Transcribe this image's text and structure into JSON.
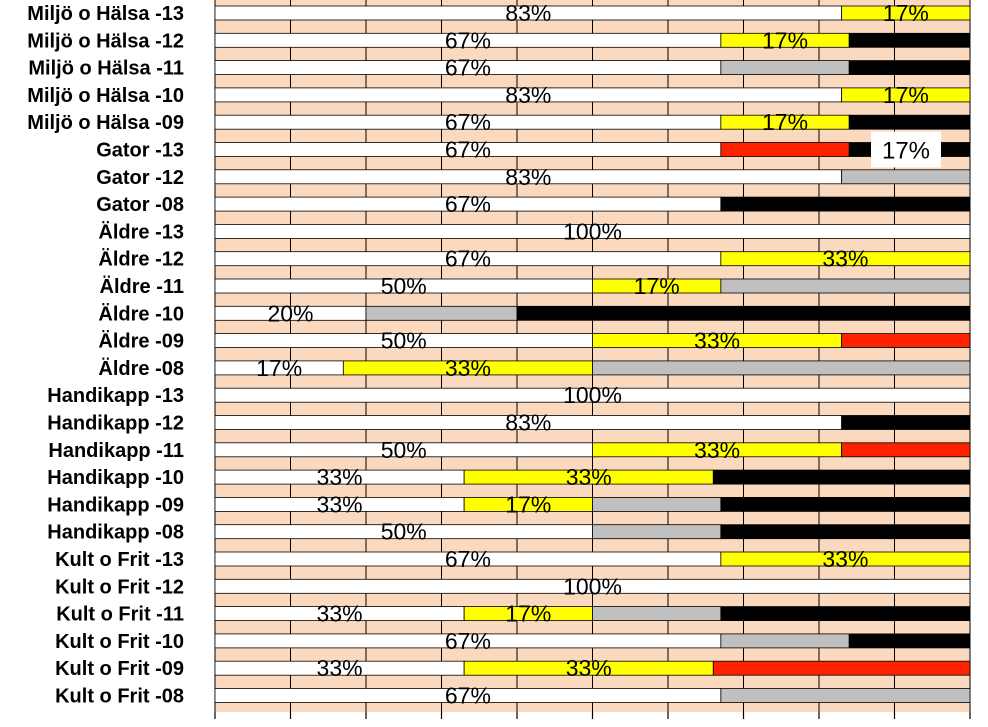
{
  "chart_data": {
    "type": "bar",
    "orientation": "horizontal",
    "stacked": true,
    "percent": true,
    "xlim": [
      0,
      100
    ],
    "grid": true,
    "legend": "none",
    "colors": {
      "background": "#fbd9be",
      "grid": "#000000",
      "white": "#ffffff",
      "yellow": "#ffff00",
      "gray": "#c0c0c0",
      "red": "#ff2200",
      "black": "#000000"
    },
    "categories": [
      "Miljö o Hälsa -13",
      "Miljö o Hälsa -12",
      "Miljö o Hälsa -11",
      "Miljö o Hälsa -10",
      "Miljö o Hälsa -09",
      "Gator -13",
      "Gator -12",
      "Gator -08",
      "Äldre -13",
      "Äldre -12",
      "Äldre -11",
      "Äldre -10",
      "Äldre -09",
      "Äldre -08",
      "Handikapp -13",
      "Handikapp -12",
      "Handikapp -11",
      "Handikapp -10",
      "Handikapp -09",
      "Handikapp -08",
      "Kult o Frit -13",
      "Kult o Frit -12",
      "Kult o Frit -11",
      "Kult o Frit -10",
      "Kult o Frit -09",
      "Kult o Frit -08"
    ],
    "rows": [
      {
        "segments": [
          {
            "c": "white",
            "v": 83,
            "label": "83%"
          },
          {
            "c": "yellow",
            "v": 17,
            "label": "17%"
          }
        ]
      },
      {
        "segments": [
          {
            "c": "white",
            "v": 67,
            "label": "67%"
          },
          {
            "c": "yellow",
            "v": 17,
            "label": "17%"
          },
          {
            "c": "black",
            "v": 16
          }
        ]
      },
      {
        "segments": [
          {
            "c": "white",
            "v": 67,
            "label": "67%"
          },
          {
            "c": "gray",
            "v": 17
          },
          {
            "c": "black",
            "v": 16
          }
        ]
      },
      {
        "segments": [
          {
            "c": "white",
            "v": 83,
            "label": "83%"
          },
          {
            "c": "yellow",
            "v": 17,
            "label": "17%"
          }
        ]
      },
      {
        "segments": [
          {
            "c": "white",
            "v": 67,
            "label": "67%"
          },
          {
            "c": "yellow",
            "v": 17,
            "label": "17%"
          },
          {
            "c": "black",
            "v": 16
          }
        ]
      },
      {
        "segments": [
          {
            "c": "white",
            "v": 67,
            "label": "67%"
          },
          {
            "c": "red",
            "v": 17
          },
          {
            "c": "black",
            "v": 16
          }
        ]
      },
      {
        "segments": [
          {
            "c": "white",
            "v": 83,
            "label": "83%"
          },
          {
            "c": "gray",
            "v": 17
          }
        ]
      },
      {
        "segments": [
          {
            "c": "white",
            "v": 67,
            "label": "67%"
          },
          {
            "c": "black",
            "v": 33
          }
        ]
      },
      {
        "segments": [
          {
            "c": "white",
            "v": 100,
            "label": "100%"
          }
        ]
      },
      {
        "segments": [
          {
            "c": "white",
            "v": 67,
            "label": "67%"
          },
          {
            "c": "yellow",
            "v": 33,
            "label": "33%"
          }
        ]
      },
      {
        "segments": [
          {
            "c": "white",
            "v": 50,
            "label": "50%"
          },
          {
            "c": "yellow",
            "v": 17,
            "label": "17%"
          },
          {
            "c": "gray",
            "v": 33
          }
        ]
      },
      {
        "segments": [
          {
            "c": "white",
            "v": 20,
            "label": "20%"
          },
          {
            "c": "gray",
            "v": 20
          },
          {
            "c": "black",
            "v": 60
          }
        ]
      },
      {
        "segments": [
          {
            "c": "white",
            "v": 50,
            "label": "50%"
          },
          {
            "c": "yellow",
            "v": 33,
            "label": "33%"
          },
          {
            "c": "red",
            "v": 17
          }
        ]
      },
      {
        "segments": [
          {
            "c": "white",
            "v": 17,
            "label": "17%"
          },
          {
            "c": "yellow",
            "v": 33,
            "label": "33%"
          },
          {
            "c": "gray",
            "v": 50
          }
        ]
      },
      {
        "segments": [
          {
            "c": "white",
            "v": 100,
            "label": "100%"
          }
        ]
      },
      {
        "segments": [
          {
            "c": "white",
            "v": 83,
            "label": "83%"
          },
          {
            "c": "black",
            "v": 17
          }
        ]
      },
      {
        "segments": [
          {
            "c": "white",
            "v": 50,
            "label": "50%"
          },
          {
            "c": "yellow",
            "v": 33,
            "label": "33%"
          },
          {
            "c": "red",
            "v": 17
          }
        ]
      },
      {
        "segments": [
          {
            "c": "white",
            "v": 33,
            "label": "33%"
          },
          {
            "c": "yellow",
            "v": 33,
            "label": "33%"
          },
          {
            "c": "black",
            "v": 34
          }
        ]
      },
      {
        "segments": [
          {
            "c": "white",
            "v": 33,
            "label": "33%"
          },
          {
            "c": "yellow",
            "v": 17,
            "label": "17%"
          },
          {
            "c": "gray",
            "v": 17
          },
          {
            "c": "black",
            "v": 33
          }
        ]
      },
      {
        "segments": [
          {
            "c": "white",
            "v": 50,
            "label": "50%"
          },
          {
            "c": "gray",
            "v": 17
          },
          {
            "c": "black",
            "v": 33
          }
        ]
      },
      {
        "segments": [
          {
            "c": "white",
            "v": 67,
            "label": "67%"
          },
          {
            "c": "yellow",
            "v": 33,
            "label": "33%"
          }
        ]
      },
      {
        "segments": [
          {
            "c": "white",
            "v": 100,
            "label": "100%"
          }
        ]
      },
      {
        "segments": [
          {
            "c": "white",
            "v": 33,
            "label": "33%"
          },
          {
            "c": "yellow",
            "v": 17,
            "label": "17%"
          },
          {
            "c": "gray",
            "v": 17
          },
          {
            "c": "black",
            "v": 33
          }
        ]
      },
      {
        "segments": [
          {
            "c": "white",
            "v": 67,
            "label": "67%"
          },
          {
            "c": "gray",
            "v": 17
          },
          {
            "c": "black",
            "v": 16
          }
        ]
      },
      {
        "segments": [
          {
            "c": "white",
            "v": 33,
            "label": "33%"
          },
          {
            "c": "yellow",
            "v": 33,
            "label": "33%"
          },
          {
            "c": "red",
            "v": 34
          }
        ]
      },
      {
        "segments": [
          {
            "c": "white",
            "v": 67,
            "label": "67%"
          },
          {
            "c": "gray",
            "v": 33
          }
        ]
      }
    ],
    "callout": {
      "row": 5,
      "text": "17%"
    }
  }
}
